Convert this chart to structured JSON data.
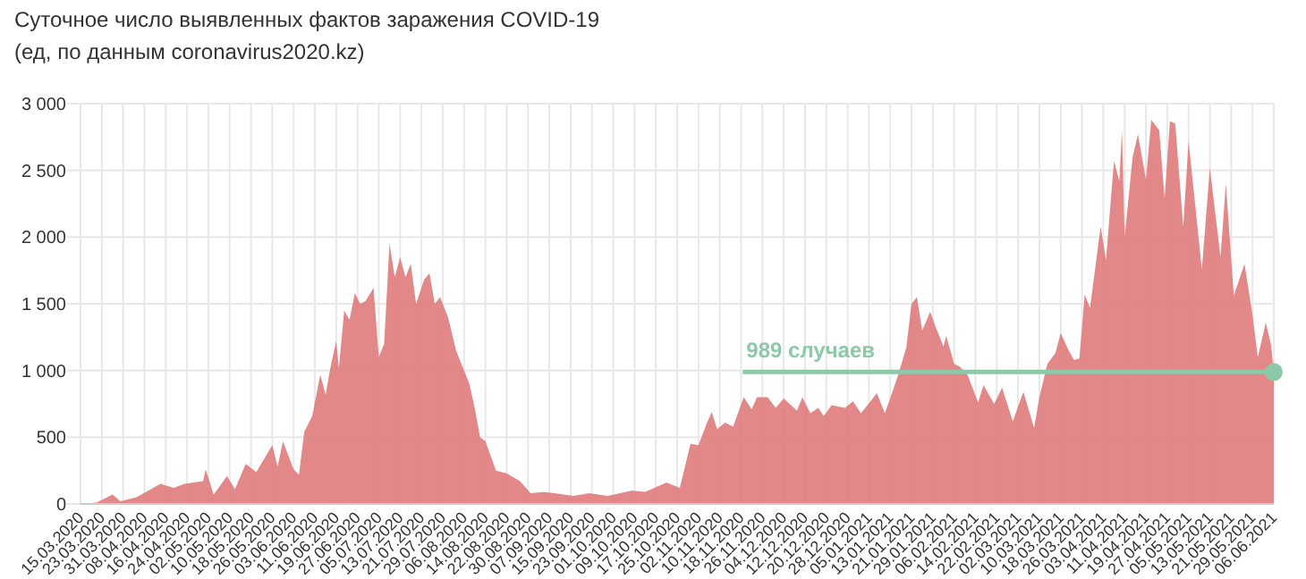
{
  "chart_data": {
    "type": "area",
    "title": "Суточное число выявленных фактов заражения COVID-19",
    "subtitle": "(ед, по данным coronavirus2020.kz)",
    "x": [
      "2020-03-15",
      "2020-03-21",
      "2020-03-27",
      "2020-03-30",
      "2020-04-05",
      "2020-04-14",
      "2020-04-19",
      "2020-04-23",
      "2020-04-30",
      "2020-05-01",
      "2020-05-04",
      "2020-05-09",
      "2020-05-12",
      "2020-05-16",
      "2020-05-20",
      "2020-05-26",
      "2020-05-28",
      "2020-05-30",
      "2020-06-03",
      "2020-06-05",
      "2020-06-07",
      "2020-06-10",
      "2020-06-13",
      "2020-06-15",
      "2020-06-17",
      "2020-06-19",
      "2020-06-20",
      "2020-06-22",
      "2020-06-24",
      "2020-06-26",
      "2020-06-28",
      "2020-06-30",
      "2020-07-03",
      "2020-07-05",
      "2020-07-07",
      "2020-07-09",
      "2020-07-11",
      "2020-07-13",
      "2020-07-15",
      "2020-07-17",
      "2020-07-19",
      "2020-07-22",
      "2020-07-24",
      "2020-07-26",
      "2020-07-28",
      "2020-07-31",
      "2020-08-03",
      "2020-08-05",
      "2020-08-08",
      "2020-08-10",
      "2020-08-12",
      "2020-08-14",
      "2020-08-18",
      "2020-08-22",
      "2020-08-27",
      "2020-08-31",
      "2020-09-05",
      "2020-09-09",
      "2020-09-16",
      "2020-09-22",
      "2020-09-29",
      "2020-10-08",
      "2020-10-13",
      "2020-10-21",
      "2020-10-26",
      "2020-10-30",
      "2020-11-02",
      "2020-11-05",
      "2020-11-07",
      "2020-11-09",
      "2020-11-12",
      "2020-11-15",
      "2020-11-19",
      "2020-11-22",
      "2020-11-24",
      "2020-11-28",
      "2020-12-01",
      "2020-12-04",
      "2020-12-09",
      "2020-12-11",
      "2020-12-14",
      "2020-12-17",
      "2020-12-19",
      "2020-12-22",
      "2020-12-27",
      "2020-12-30",
      "2021-01-02",
      "2021-01-08",
      "2021-01-11",
      "2021-01-14",
      "2021-01-16",
      "2021-01-19",
      "2021-01-21",
      "2021-01-23",
      "2021-01-25",
      "2021-01-28",
      "2021-01-30",
      "2021-02-02",
      "2021-02-03",
      "2021-02-06",
      "2021-02-08",
      "2021-02-11",
      "2021-02-15",
      "2021-02-17",
      "2021-02-21",
      "2021-02-24",
      "2021-02-28",
      "2021-03-04",
      "2021-03-08",
      "2021-03-10",
      "2021-03-13",
      "2021-03-16",
      "2021-03-18",
      "2021-03-21",
      "2021-03-23",
      "2021-03-25",
      "2021-03-27",
      "2021-03-29",
      "2021-04-02",
      "2021-04-04",
      "2021-04-07",
      "2021-04-09",
      "2021-04-10",
      "2021-04-11",
      "2021-04-14",
      "2021-04-16",
      "2021-04-19",
      "2021-04-21",
      "2021-04-24",
      "2021-04-26",
      "2021-04-28",
      "2021-04-30",
      "2021-05-03",
      "2021-05-05",
      "2021-05-10",
      "2021-05-13",
      "2021-05-17",
      "2021-05-19",
      "2021-05-22",
      "2021-05-26",
      "2021-05-29",
      "2021-05-31",
      "2021-06-03",
      "2021-06-05",
      "2021-06-06"
    ],
    "series": [
      {
        "color": "#e07b7b",
        "values": [
          0,
          10,
          70,
          20,
          50,
          150,
          120,
          150,
          170,
          260,
          70,
          210,
          110,
          300,
          240,
          440,
          280,
          470,
          260,
          220,
          540,
          660,
          970,
          820,
          1040,
          1220,
          1020,
          1450,
          1380,
          1580,
          1500,
          1520,
          1620,
          1100,
          1200,
          1950,
          1700,
          1850,
          1700,
          1800,
          1500,
          1680,
          1730,
          1500,
          1550,
          1400,
          1150,
          1050,
          900,
          720,
          500,
          470,
          250,
          230,
          170,
          80,
          90,
          80,
          60,
          80,
          60,
          100,
          90,
          160,
          120,
          450,
          440,
          600,
          690,
          560,
          610,
          580,
          800,
          710,
          800,
          800,
          720,
          790,
          700,
          800,
          680,
          720,
          660,
          740,
          720,
          770,
          680,
          830,
          680,
          850,
          970,
          1170,
          1500,
          1550,
          1300,
          1440,
          1330,
          1180,
          1260,
          1050,
          1030,
          970,
          760,
          890,
          750,
          870,
          620,
          840,
          570,
          800,
          1050,
          1130,
          1280,
          1150,
          1080,
          1090,
          1570,
          1470,
          2080,
          1830,
          2570,
          2420,
          2800,
          2000,
          2600,
          2770,
          2430,
          2880,
          2800,
          2290,
          2870,
          2850,
          2080,
          2720,
          1760,
          2520,
          1850,
          2400,
          1560,
          1800,
          1420,
          1100,
          1360,
          1190,
          990
        ]
      }
    ],
    "ylim": [
      0,
      3000
    ],
    "yticks": [
      0,
      500,
      {
        "value": 1000,
        "label": "1 000"
      },
      {
        "value": 1500,
        "label": "1 500"
      },
      {
        "value": 2000,
        "label": "2 000"
      },
      {
        "value": 2500,
        "label": "2 500"
      },
      {
        "value": 3000,
        "label": "3 000"
      }
    ],
    "xlim": [
      "2020-03-15",
      "2021-06-06"
    ],
    "xticks": [
      {
        "value": "2020-03-15",
        "label": "15.03.2020"
      },
      {
        "value": "2020-03-23",
        "label": "23.03.2020"
      },
      {
        "value": "2020-03-31",
        "label": "31.03.2020"
      },
      {
        "value": "2020-04-08",
        "label": "08.04.2020"
      },
      {
        "value": "2020-04-16",
        "label": "16.04.2020"
      },
      {
        "value": "2020-04-24",
        "label": "24.04.2020"
      },
      {
        "value": "2020-05-02",
        "label": "02.05.2020"
      },
      {
        "value": "2020-05-10",
        "label": "10.05.2020"
      },
      {
        "value": "2020-05-18",
        "label": "18.05.2020"
      },
      {
        "value": "2020-05-26",
        "label": "26.05.2020"
      },
      {
        "value": "2020-06-03",
        "label": "03.06.2020"
      },
      {
        "value": "2020-06-11",
        "label": "11.06.2020"
      },
      {
        "value": "2020-06-19",
        "label": "19.06.2020"
      },
      {
        "value": "2020-06-27",
        "label": "27.06.2020"
      },
      {
        "value": "2020-07-05",
        "label": "05.07.2020"
      },
      {
        "value": "2020-07-13",
        "label": "13.07.2020"
      },
      {
        "value": "2020-07-21",
        "label": "21.07.2020"
      },
      {
        "value": "2020-07-29",
        "label": "29.07.2020"
      },
      {
        "value": "2020-08-06",
        "label": "06.08.2020"
      },
      {
        "value": "2020-08-14",
        "label": "14.08.2020"
      },
      {
        "value": "2020-08-22",
        "label": "22.08.2020"
      },
      {
        "value": "2020-08-30",
        "label": "30.08.2020"
      },
      {
        "value": "2020-09-07",
        "label": "07.09.2020"
      },
      {
        "value": "2020-09-15",
        "label": "15.09.2020"
      },
      {
        "value": "2020-09-23",
        "label": "23.09.2020"
      },
      {
        "value": "2020-10-01",
        "label": "01.10.2020"
      },
      {
        "value": "2020-10-09",
        "label": "09.10.2020"
      },
      {
        "value": "2020-10-17",
        "label": "17.10.2020"
      },
      {
        "value": "2020-10-25",
        "label": "25.10.2020"
      },
      {
        "value": "2020-11-02",
        "label": "02.11.2020"
      },
      {
        "value": "2020-11-10",
        "label": "10.11.2020"
      },
      {
        "value": "2020-11-18",
        "label": "18.11.2020"
      },
      {
        "value": "2020-11-26",
        "label": "26.11.2020"
      },
      {
        "value": "2020-12-04",
        "label": "04.12.2020"
      },
      {
        "value": "2020-12-12",
        "label": "12.12.2020"
      },
      {
        "value": "2020-12-20",
        "label": "20.12.2020"
      },
      {
        "value": "2020-12-28",
        "label": "28.12.2020"
      },
      {
        "value": "2021-01-05",
        "label": "05.01.2021"
      },
      {
        "value": "2021-01-13",
        "label": "13.01.2021"
      },
      {
        "value": "2021-01-21",
        "label": "21.01.2021"
      },
      {
        "value": "2021-01-29",
        "label": "29.01.2021"
      },
      {
        "value": "2021-02-06",
        "label": "06.02.2021"
      },
      {
        "value": "2021-02-14",
        "label": "14.02.2021"
      },
      {
        "value": "2021-02-22",
        "label": "22.02.2021"
      },
      {
        "value": "2021-03-02",
        "label": "02.03.2021"
      },
      {
        "value": "2021-03-10",
        "label": "10.03.2021"
      },
      {
        "value": "2021-03-18",
        "label": "18.03.2021"
      },
      {
        "value": "2021-03-26",
        "label": "26.03.2021"
      },
      {
        "value": "2021-04-03",
        "label": "03.04.2021"
      },
      {
        "value": "2021-04-11",
        "label": "11.04.2021"
      },
      {
        "value": "2021-04-19",
        "label": "19.04.2021"
      },
      {
        "value": "2021-04-27",
        "label": "27.04.2021"
      },
      {
        "value": "2021-05-05",
        "label": "05.05.2021"
      },
      {
        "value": "2021-05-13",
        "label": "13.05.2021"
      },
      {
        "value": "2021-05-21",
        "label": "21.05.2021"
      },
      {
        "value": "2021-05-29",
        "label": "29.05.2021"
      },
      {
        "value": "2021-06-06",
        "label": "06.06.2021"
      }
    ],
    "grid": true,
    "ref_lines": [
      {
        "axis": "y",
        "value": 989,
        "label": "989 случаев",
        "color": "#8cc9a6"
      }
    ]
  }
}
